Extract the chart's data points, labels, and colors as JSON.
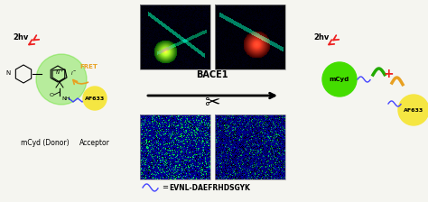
{
  "bg_color": "#f5f5f0",
  "fig_width": 4.74,
  "fig_height": 2.24,
  "dpi": 100,
  "text_bace1": "BACE1",
  "text_2hv_left": "2hv",
  "text_2hv_right": "2hv",
  "text_fret": "FRET",
  "text_mcyd_donor": "mCyd (Donor)",
  "text_acceptor": "Acceptor",
  "text_af633_left": "AF633",
  "text_af633_right": "AF633",
  "text_mcyd_right": "mCyd",
  "text_peptide": "EVNL-DAEFRHDSGYK",
  "text_equals": "=",
  "green_color": "#44dd00",
  "yellow_color": "#f5e642",
  "orange_color": "#e8a020",
  "red_color": "#ee2222",
  "blue_color": "#4444ff",
  "dark_green": "#22aa00",
  "fret_arrow_color": "#e8a020"
}
